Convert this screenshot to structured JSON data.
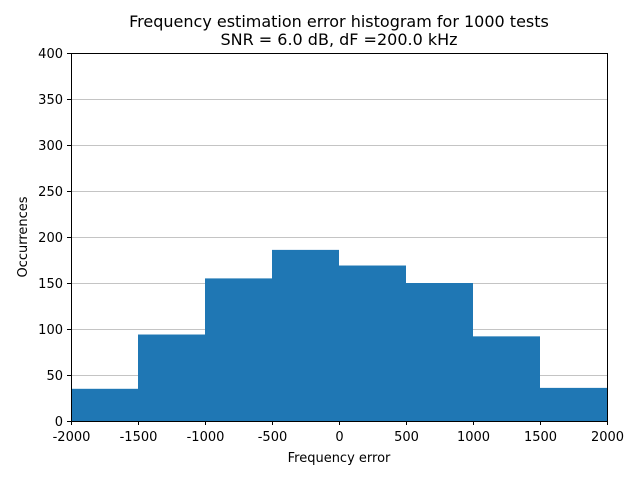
{
  "chart_data": {
    "type": "bar",
    "title": "Frequency estimation error histogram for 1000 tests",
    "subtitle": "SNR = 6.0 dB, dF =200.0 kHz",
    "xlabel": "Frequency error",
    "ylabel": "Occurrences",
    "xlim": [
      -2000,
      2000
    ],
    "ylim": [
      0,
      400
    ],
    "x_ticks": [
      "-2000",
      "-1500",
      "-1000",
      "-500",
      "0",
      "500",
      "1000",
      "1500",
      "2000"
    ],
    "y_ticks": [
      "0",
      "50",
      "100",
      "150",
      "200",
      "250",
      "300",
      "350",
      "400"
    ],
    "grid": "horizontal",
    "bins": [
      {
        "start": -2000,
        "end": -1500,
        "value": 35
      },
      {
        "start": -1500,
        "end": -1000,
        "value": 94
      },
      {
        "start": -1000,
        "end": -500,
        "value": 155
      },
      {
        "start": -500,
        "end": 0,
        "value": 186
      },
      {
        "start": 0,
        "end": 500,
        "value": 169
      },
      {
        "start": 500,
        "end": 1000,
        "value": 150
      },
      {
        "start": 1000,
        "end": 1500,
        "value": 92
      },
      {
        "start": 1500,
        "end": 2000,
        "value": 36
      }
    ],
    "bar_color": "#1f77b4",
    "grid_color": "#b0b0b0"
  }
}
